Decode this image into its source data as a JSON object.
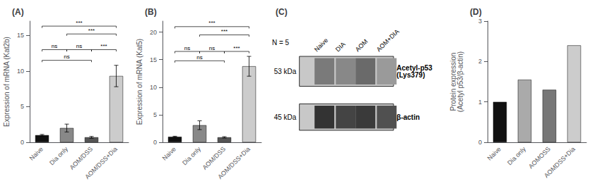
{
  "chart_data": [
    {
      "type": "bar",
      "title": "(A)",
      "ylabel": "Expression of mRNA (Kat2b)",
      "categories": [
        "Naive",
        "Dia only",
        "AOM/DSS",
        "AOM/DSS+Dia"
      ],
      "values": [
        1.0,
        2.0,
        0.7,
        9.3
      ],
      "errors": [
        0.1,
        0.55,
        0.12,
        1.5
      ],
      "colors": [
        "#111111",
        "#888888",
        "#555555",
        "#cccccc"
      ],
      "ylim": [
        0,
        17
      ],
      "yticks": [
        0,
        5,
        10,
        15
      ],
      "grid": false,
      "annotations": [
        {
          "between": [
            "Naive",
            "Dia only"
          ],
          "label": "ns",
          "y": 13.0
        },
        {
          "between": [
            "Naive",
            "AOM/DSS"
          ],
          "label": "ns",
          "y": 11.5
        },
        {
          "between": [
            "Dia only",
            "AOM/DSS"
          ],
          "label": "ns",
          "y": 13.0
        },
        {
          "between": [
            "AOM/DSS",
            "AOM/DSS+Dia"
          ],
          "label": "***",
          "y": 13.0
        },
        {
          "between": [
            "Dia only",
            "AOM/DSS+Dia"
          ],
          "label": "***",
          "y": 15.2
        },
        {
          "between": [
            "Naive",
            "AOM/DSS+Dia"
          ],
          "label": "***",
          "y": 16.3
        }
      ]
    },
    {
      "type": "bar",
      "title": "(B)",
      "ylabel": "Expression of mRNA (Kat5)",
      "categories": [
        "Naive",
        "Dia only",
        "AOM/DSS",
        "AOM/DSS+Dia"
      ],
      "values": [
        1.0,
        3.1,
        0.9,
        13.8
      ],
      "errors": [
        0.1,
        0.8,
        0.12,
        1.8
      ],
      "colors": [
        "#111111",
        "#888888",
        "#555555",
        "#cccccc"
      ],
      "ylim": [
        0,
        22
      ],
      "yticks": [
        0,
        5,
        10,
        15,
        20
      ],
      "grid": false,
      "annotations": [
        {
          "between": [
            "Naive",
            "Dia only"
          ],
          "label": "ns",
          "y": 16.5
        },
        {
          "between": [
            "Naive",
            "AOM/DSS"
          ],
          "label": "ns",
          "y": 14.8
        },
        {
          "between": [
            "Dia only",
            "AOM/DSS"
          ],
          "label": "ns",
          "y": 16.5
        },
        {
          "between": [
            "AOM/DSS",
            "AOM/DSS+Dia"
          ],
          "label": "***",
          "y": 16.5
        },
        {
          "between": [
            "Dia only",
            "AOM/DSS+Dia"
          ],
          "label": "***",
          "y": 19.5
        },
        {
          "between": [
            "Naive",
            "AOM/DSS+Dia"
          ],
          "label": "***",
          "y": 21.0
        }
      ]
    },
    {
      "type": "blot",
      "title": "(C)",
      "categories": [
        "Naive",
        "DIA",
        "AOM",
        "AOM+DIA"
      ],
      "annotations": [
        "N = 5"
      ],
      "color": "#c8c8c8",
      "series": [
        {
          "name": "Acetyl-p53\n(Lys379)",
          "annotation": "53 kDa",
          "colors": [
            "#7a7a7a",
            "#888888",
            "#6a6a6a",
            "#9a9a9a"
          ]
        },
        {
          "name": "β-actin",
          "annotation": "45 kDa",
          "colors": [
            "#333333",
            "#444444",
            "#3a3a3a",
            "#505050"
          ]
        }
      ]
    },
    {
      "type": "bar",
      "title": "(D)",
      "ylabel": "Protein expression\n(Acetyl p53/β-actin)",
      "categories": [
        "Naive",
        "Dia only",
        "AOMOSS",
        "AOMDSS+Dia"
      ],
      "values": [
        1.0,
        1.55,
        1.3,
        2.4
      ],
      "colors": [
        "#111111",
        "#aaaaaa",
        "#777777",
        "#cccccc"
      ],
      "ylim": [
        0,
        3.0
      ],
      "yticks": [
        0,
        1,
        2,
        3
      ],
      "grid": false
    }
  ]
}
